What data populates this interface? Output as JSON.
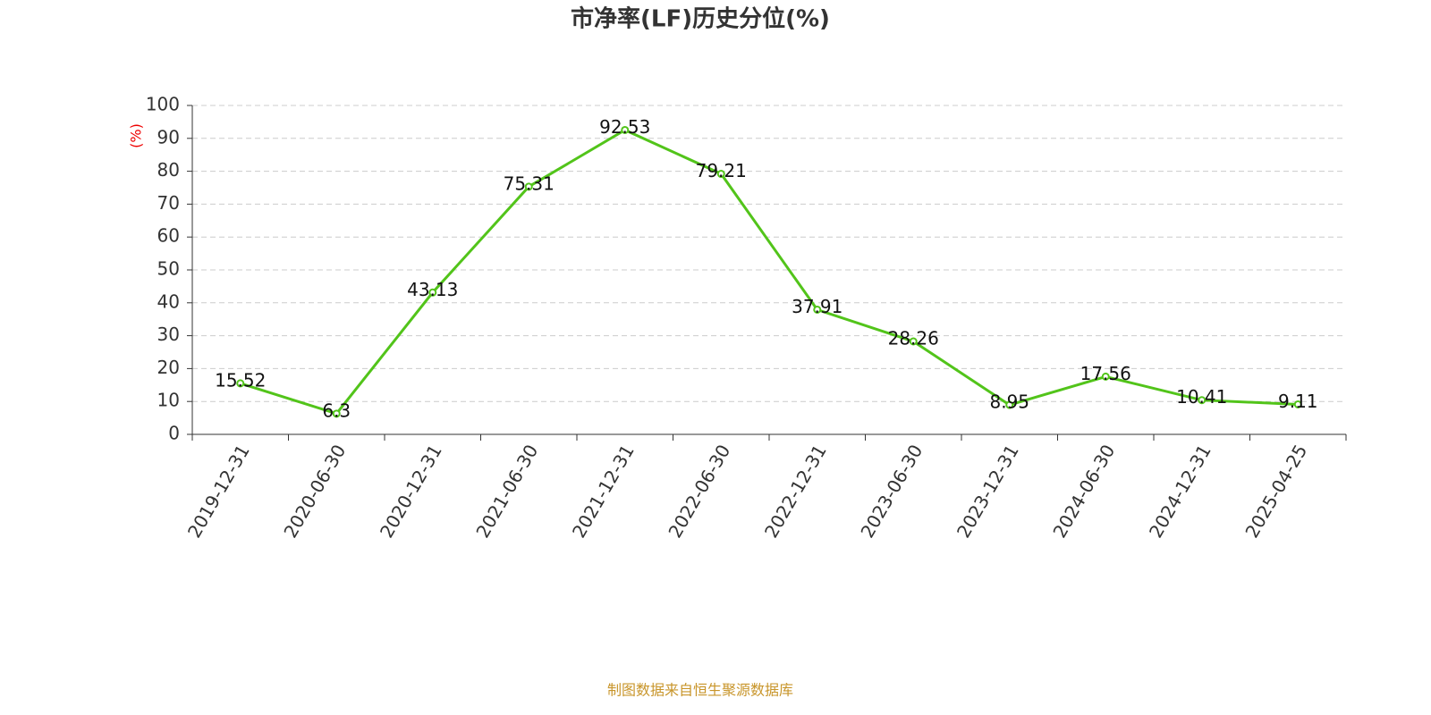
{
  "chart_data": {
    "type": "line",
    "title": "市净率(LF)历史分位(%)",
    "y_label": "(%)",
    "footer": "制图数据来自恒生聚源数据库",
    "categories": [
      "2019-12-31",
      "2020-06-30",
      "2020-12-31",
      "2021-06-30",
      "2021-12-31",
      "2022-06-30",
      "2022-12-31",
      "2023-06-30",
      "2023-12-31",
      "2024-06-30",
      "2024-12-31",
      "2025-04-25"
    ],
    "values": [
      15.52,
      6.3,
      43.13,
      75.31,
      92.53,
      79.21,
      37.91,
      28.26,
      8.95,
      17.56,
      10.41,
      9.11
    ],
    "color": "#52c41a",
    "ylim": [
      0,
      100
    ],
    "yticks": [
      0,
      10,
      20,
      30,
      40,
      50,
      60,
      70,
      80,
      90,
      100
    ],
    "grid": true
  }
}
